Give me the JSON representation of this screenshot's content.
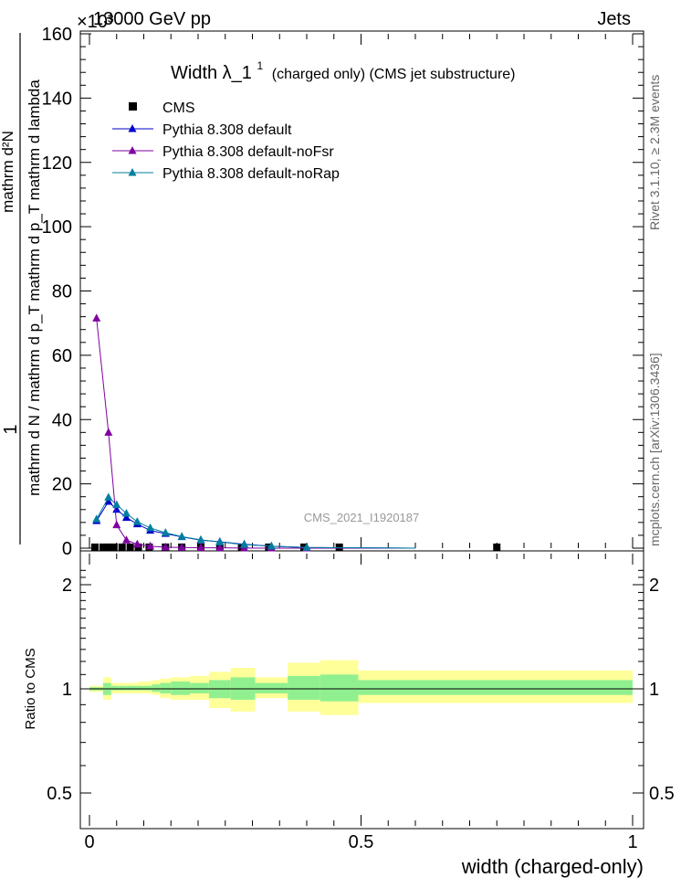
{
  "header": {
    "left": "13000 GeV pp",
    "right": "Jets",
    "exponent": "×10³"
  },
  "plot_title_main": "Width λ_1",
  "plot_title_sup": "1",
  "plot_title_rest": "(charged only) (CMS jet substructure)",
  "watermark": "CMS_2021_I1920187",
  "side_right_top": "Rivet 3.1.10, ≥ 2.3M events",
  "side_right_bottom": "mcplots.cern.ch [arXiv:1306.3436]",
  "ylabel_main": {
    "numerator": "1",
    "denominator": "mathrm d N / mathrm d p_T mathrm d p_T mathrm d lambda"
  },
  "ylabel_top": "mathrm d²N",
  "ylabel_ratio": "Ratio to CMS",
  "xlabel": "width (charged-only)",
  "colors": {
    "data": "#000000",
    "default": "#0000cc",
    "noFsr": "#7f00a0",
    "noRap": "#007f9f",
    "band_outer": "#ffff99",
    "band_inner": "#90f090"
  },
  "chart_data": [
    {
      "type": "line",
      "title": "Width λ_1¹ (charged only) (CMS jet substructure)",
      "ylabel": "1/N dN/dλ (×10³)",
      "xlim": [
        -0.02,
        1.02
      ],
      "ylim": [
        0,
        160
      ],
      "yticks": [
        "0",
        "20",
        "40",
        "60",
        "80",
        "100",
        "120",
        "140",
        "160"
      ],
      "legend": [
        "CMS",
        "Pythia 8.308 default",
        "Pythia 8.308 default-noFsr",
        "Pythia 8.308 default-noRap"
      ],
      "legend_position": "top-left",
      "series": [
        {
          "name": "CMS",
          "marker": "square",
          "x": [
            0.01,
            0.025,
            0.035,
            0.045,
            0.06,
            0.075,
            0.09,
            0.11,
            0.14,
            0.17,
            0.205,
            0.24,
            0.28,
            0.33,
            0.395,
            0.46,
            0.75
          ],
          "y": [
            0.3,
            0.3,
            0.3,
            0.3,
            0.3,
            0.3,
            0.3,
            0.3,
            0.3,
            0.3,
            0.3,
            0.3,
            0.3,
            0.3,
            0.3,
            0.3,
            0.3
          ]
        },
        {
          "name": "Pythia 8.308 default",
          "marker": "triangle",
          "x": [
            0.013,
            0.035,
            0.05,
            0.068,
            0.088,
            0.112,
            0.14,
            0.17,
            0.205,
            0.24,
            0.285,
            0.335,
            0.4,
            0.6
          ],
          "y": [
            8.5,
            14.5,
            12.0,
            9.5,
            7.5,
            5.5,
            4.5,
            3.5,
            2.5,
            2.0,
            1.2,
            0.6,
            0.2,
            0.0
          ]
        },
        {
          "name": "Pythia 8.308 default-noFsr",
          "marker": "triangle",
          "x": [
            0.013,
            0.035,
            0.05,
            0.068,
            0.088,
            0.112,
            0.14,
            0.17,
            0.205,
            0.24,
            0.285,
            0.335,
            0.4,
            0.6
          ],
          "y": [
            71.5,
            36.0,
            7.2,
            2.5,
            1.2,
            0.6,
            0.3,
            0.2,
            0.1,
            0.1,
            0.05,
            0.0,
            0.0,
            0.0
          ]
        },
        {
          "name": "Pythia 8.308 default-noRap",
          "marker": "triangle",
          "x": [
            0.013,
            0.035,
            0.05,
            0.068,
            0.088,
            0.112,
            0.14,
            0.17,
            0.205,
            0.24,
            0.285,
            0.335,
            0.4,
            0.6
          ],
          "y": [
            9.0,
            15.8,
            13.5,
            10.8,
            8.2,
            6.3,
            4.8,
            3.6,
            2.6,
            1.9,
            1.1,
            0.6,
            0.2,
            0.0
          ]
        }
      ]
    },
    {
      "type": "area",
      "ylabel": "Ratio to CMS",
      "xlabel": "width (charged-only)",
      "xlim": [
        -0.02,
        1.02
      ],
      "ylim": [
        0.4,
        2.3
      ],
      "yticks": [
        "0.5",
        "1",
        "2"
      ],
      "xticks": [
        "0",
        "0.5",
        "1"
      ],
      "bands": {
        "edges": [
          0.0,
          0.025,
          0.04,
          0.055,
          0.07,
          0.09,
          0.115,
          0.13,
          0.15,
          0.185,
          0.22,
          0.26,
          0.305,
          0.365,
          0.425,
          0.495,
          1.0
        ],
        "outer_low": [
          0.98,
          0.93,
          0.97,
          0.97,
          0.97,
          0.97,
          0.96,
          0.94,
          0.93,
          0.93,
          0.88,
          0.86,
          0.94,
          0.86,
          0.84,
          0.91
        ],
        "outer_high": [
          1.02,
          1.08,
          1.04,
          1.04,
          1.04,
          1.05,
          1.06,
          1.07,
          1.08,
          1.09,
          1.12,
          1.15,
          1.08,
          1.19,
          1.21,
          1.13
        ],
        "inner_low": [
          0.99,
          0.96,
          0.99,
          0.99,
          0.99,
          0.99,
          0.98,
          0.97,
          0.96,
          0.97,
          0.94,
          0.93,
          0.97,
          0.93,
          0.92,
          0.96
        ],
        "inner_high": [
          1.01,
          1.04,
          1.02,
          1.02,
          1.02,
          1.02,
          1.03,
          1.04,
          1.05,
          1.04,
          1.06,
          1.08,
          1.04,
          1.09,
          1.1,
          1.06
        ]
      }
    }
  ]
}
